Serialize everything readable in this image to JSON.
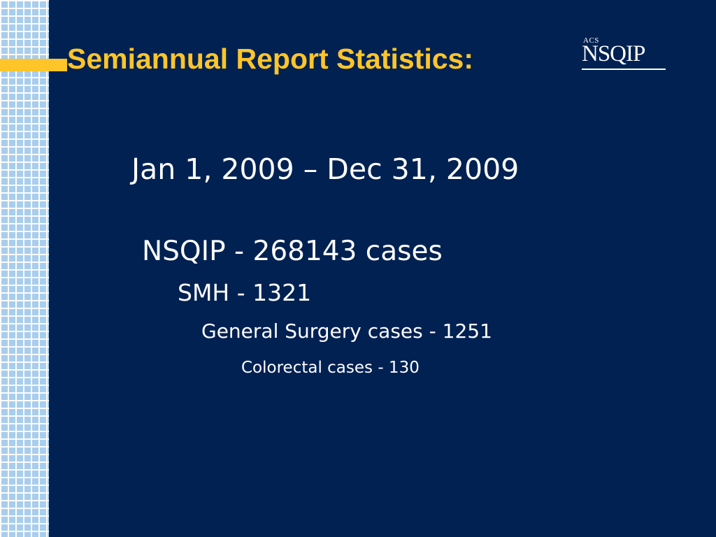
{
  "slide": {
    "title": "Semiannual Report Statistics:",
    "logo": {
      "small_text": "ACS",
      "main_text": "NSQIP"
    },
    "date_range": "Jan 1, 2009 – Dec 31, 2009",
    "lines": [
      "NSQIP - 268143 cases",
      "SMH - 1321",
      "General Surgery cases - 1251",
      "Colorectal cases - 130"
    ]
  },
  "colors": {
    "background": "#002152",
    "title": "#fdc52a",
    "accent_bar": "#fdc52a",
    "grid_strip": "#a9cdec",
    "body_text": "#ffffff"
  }
}
